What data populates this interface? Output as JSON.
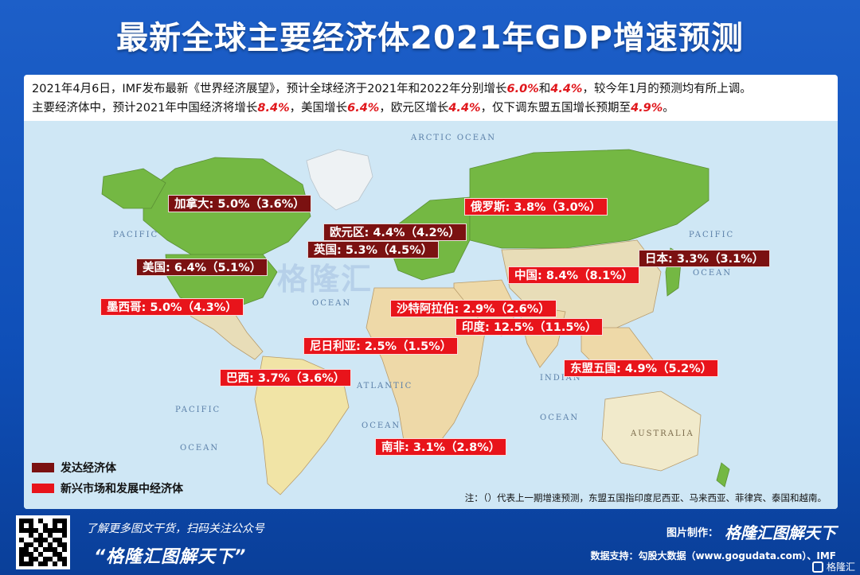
{
  "title": "最新全球主要经济体2021年GDP增速预测",
  "intro": {
    "line1_a": "2021年4月6日，IMF发布最新《世界经济展望》，预计全球经济于2021年和2022年分别增长",
    "line1_v1": "6.0%",
    "line1_b": "和",
    "line1_v2": "4.4%",
    "line1_c": "，较今年1月的预测均有所上调。",
    "line2_a": "主要经济体中，预计2021年中国经济将增长",
    "line2_v1": "8.4%",
    "line2_b": "，美国增长",
    "line2_v2": "6.4%",
    "line2_c": "，欧元区增长",
    "line2_v3": "4.4%",
    "line2_d": "，仅下调东盟五国增长预期至",
    "line2_v4": "4.9%",
    "line2_e": "。"
  },
  "oceans": {
    "arctic": "ARCTIC OCEAN",
    "pacific_w": "PACIFIC",
    "pacific_e": "PACIFIC",
    "ocean_e": "OCEAN",
    "atlantic_n": "OCEAN",
    "atlantic_s1": "ATLANTIC",
    "atlantic_s2": "OCEAN",
    "indian1": "INDIAN",
    "indian2": "OCEAN",
    "pacific_s1": "PACIFIC",
    "pacific_s2": "OCEAN",
    "australia": "AUSTRALIA"
  },
  "watermark": "格隆汇",
  "labels": {
    "canada": "加拿大: 5.0%（3.6%）",
    "russia": "俄罗斯: 3.8%（3.0%）",
    "eurozone": "欧元区: 4.4%（4.2%）",
    "uk": "英国: 5.3%（4.5%）",
    "usa": "美国: 6.4%（5.1%）",
    "japan": "日本: 3.3%（3.1%）",
    "china": "中国: 8.4%（8.1%）",
    "mexico": "墨西哥: 5.0%（4.3%）",
    "saudi": "沙特阿拉伯: 2.9%（2.6%）",
    "india": "印度: 12.5%（11.5%）",
    "nigeria": "尼日利亚: 2.5%（1.5%）",
    "asean": "东盟五国: 4.9%（5.2%）",
    "brazil": "巴西: 3.7%（3.6%）",
    "south_africa": "南非: 3.1%（2.8%）"
  },
  "legend": {
    "developed": "发达经济体",
    "emerging": "新兴市场和发展中经济体"
  },
  "note": "注：（）代表上一期增速预测，东盟五国指印度尼西亚、马来西亚、菲律宾、泰国和越南。",
  "colors": {
    "developed": "#7b1111",
    "emerging": "#e8141b",
    "developed_land": "#74b843",
    "ocean": "#cfe7f5",
    "land": "#e8ddb8"
  },
  "footer": {
    "line1": "了解更多图文干货，扫码关注公众号",
    "line2": "“格隆汇图解天下”",
    "credit_label": "图片制作：",
    "credit_brand": "格隆汇图解天下",
    "data_support": "数据支持：勾股大数据（www.gogudata.com）、IMF",
    "corner": "格隆汇"
  }
}
